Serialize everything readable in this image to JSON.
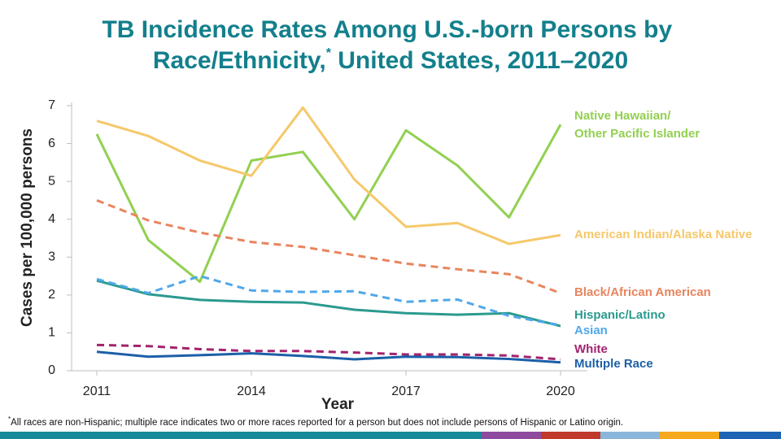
{
  "chart_data": {
    "type": "line",
    "title": "TB Incidence Rates Among U.S.-born Persons by Race/Ethnicity,* United States, 2011–2020",
    "x_label": "Year",
    "y_label": "Cases per 100,000 persons",
    "footnote": "*All races are non-Hispanic; multiple race indicates two or more races reported for a person but does not include persons of Hispanic or Latino origin.",
    "x": [
      2011,
      2012,
      2013,
      2014,
      2015,
      2016,
      2017,
      2018,
      2019,
      2020
    ],
    "xlim": [
      2010.5,
      2020.5
    ],
    "xticks": [
      2011,
      2014,
      2017,
      2020
    ],
    "ylim": [
      0,
      7
    ],
    "yticks": [
      0,
      1,
      2,
      3,
      4,
      5,
      6,
      7
    ],
    "series": [
      {
        "name": "Native Hawaiian/Other Pacific Islander",
        "color": "#92d050",
        "dashed": false,
        "values": [
          6.25,
          3.45,
          2.35,
          5.55,
          5.78,
          4.0,
          6.35,
          5.42,
          4.05,
          6.5
        ]
      },
      {
        "name": "American Indian/Alaska Native",
        "color": "#f5c86a",
        "dashed": false,
        "values": [
          6.6,
          6.2,
          5.55,
          5.15,
          6.95,
          5.05,
          3.8,
          3.9,
          3.35,
          3.58
        ]
      },
      {
        "name": "Black/African American",
        "color": "#e8855e",
        "dashed": true,
        "values": [
          4.5,
          3.97,
          3.65,
          3.4,
          3.27,
          3.05,
          2.83,
          2.68,
          2.55,
          2.05
        ]
      },
      {
        "name": "Hispanic/Latino",
        "color": "#2b9a8e",
        "dashed": false,
        "values": [
          2.38,
          2.02,
          1.87,
          1.82,
          1.8,
          1.61,
          1.52,
          1.48,
          1.52,
          1.18
        ]
      },
      {
        "name": "Asian",
        "color": "#4fa8ea",
        "dashed": true,
        "values": [
          2.42,
          2.05,
          2.5,
          2.12,
          2.08,
          2.1,
          1.82,
          1.88,
          1.45,
          1.2
        ]
      },
      {
        "name": "White",
        "color": "#a2236f",
        "dashed": true,
        "values": [
          0.68,
          0.65,
          0.57,
          0.52,
          0.52,
          0.48,
          0.43,
          0.43,
          0.4,
          0.3
        ]
      },
      {
        "name": "Multiple Race",
        "color": "#1b5fa8",
        "dashed": false,
        "values": [
          0.5,
          0.37,
          0.41,
          0.46,
          0.39,
          0.3,
          0.37,
          0.36,
          0.31,
          0.22
        ]
      }
    ]
  }
}
